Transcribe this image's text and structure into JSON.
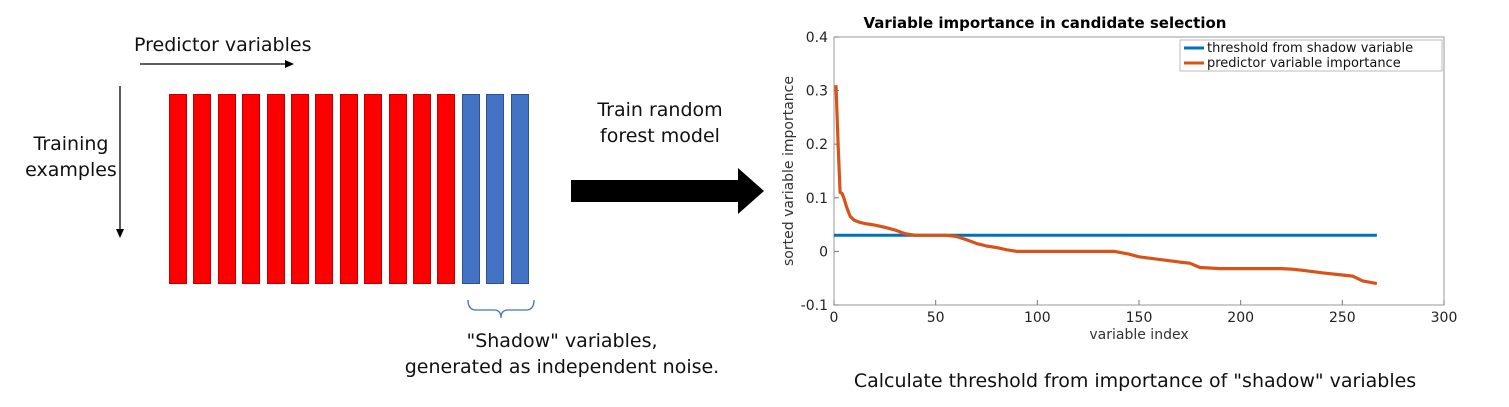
{
  "left_panel": {
    "top_label": "Predictor variables",
    "side_label_line1": "Training",
    "side_label_line2": "examples",
    "red_column_count": 12,
    "blue_column_count": 3,
    "red_color": "#ff0000",
    "blue_color": "#4472c4",
    "shadow_label_line1": "\"Shadow\" variables,",
    "shadow_label_line2": "generated as independent noise."
  },
  "middle": {
    "line1": "Train random",
    "line2": "forest model",
    "arrow_icon": "right-arrow-icon"
  },
  "caption": "Calculate threshold from importance of \"shadow\" variables",
  "chart_data": {
    "type": "line",
    "title": "Variable importance in candidate selection",
    "xlabel": "variable index",
    "ylabel": "sorted variable importance",
    "xlim": [
      0,
      300
    ],
    "ylim": [
      -0.1,
      0.4
    ],
    "xticks": [
      0,
      50,
      100,
      150,
      200,
      250,
      300
    ],
    "yticks": [
      -0.1,
      0,
      0.1,
      0.2,
      0.3,
      0.4
    ],
    "grid": false,
    "legend_position": "top-right",
    "series": [
      {
        "name": "threshold from shadow variable",
        "color": "#0072bd",
        "x": [
          0,
          267
        ],
        "y": [
          0.03,
          0.03
        ]
      },
      {
        "name": "predictor variable importance",
        "color": "#d95319",
        "x": [
          1,
          2,
          3,
          4,
          5,
          6,
          7,
          8,
          10,
          12,
          15,
          20,
          25,
          30,
          35,
          40,
          50,
          55,
          60,
          65,
          70,
          75,
          80,
          85,
          90,
          100,
          110,
          120,
          130,
          138,
          145,
          150,
          160,
          170,
          175,
          180,
          190,
          200,
          210,
          220,
          225,
          230,
          240,
          250,
          255,
          260,
          267
        ],
        "y": [
          0.31,
          0.2,
          0.11,
          0.108,
          0.098,
          0.085,
          0.075,
          0.065,
          0.058,
          0.055,
          0.052,
          0.049,
          0.045,
          0.04,
          0.033,
          0.03,
          0.03,
          0.03,
          0.028,
          0.022,
          0.015,
          0.01,
          0.007,
          0.003,
          0.0,
          0.0,
          0.0,
          0.0,
          0.0,
          0.0,
          -0.005,
          -0.01,
          -0.015,
          -0.02,
          -0.022,
          -0.03,
          -0.032,
          -0.032,
          -0.032,
          -0.032,
          -0.033,
          -0.035,
          -0.04,
          -0.044,
          -0.046,
          -0.055,
          -0.06
        ]
      }
    ]
  }
}
